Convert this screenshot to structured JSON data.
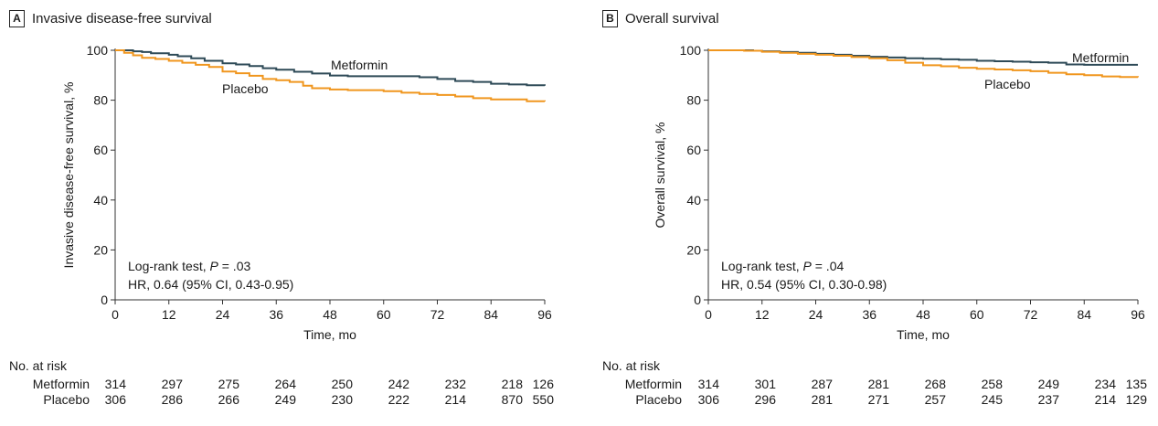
{
  "chart_data": [
    {
      "type": "line",
      "panel_letter": "A",
      "title": "Invasive disease-free survival",
      "xlabel": "Time, mo",
      "ylabel": "Invasive disease-free survival, %",
      "xlim": [
        0,
        96
      ],
      "ylim": [
        0,
        100
      ],
      "xticks": [
        0,
        12,
        24,
        36,
        48,
        60,
        72,
        84,
        96
      ],
      "yticks": [
        0,
        20,
        40,
        60,
        80,
        100
      ],
      "series": [
        {
          "name": "Metformin",
          "color": "#2e4a57",
          "x": [
            0,
            4,
            6,
            8,
            12,
            14,
            17,
            20,
            24,
            27,
            30,
            33,
            36,
            40,
            44,
            48,
            52,
            56,
            60,
            64,
            68,
            72,
            76,
            80,
            84,
            88,
            92,
            96
          ],
          "y": [
            100,
            99.6,
            99.3,
            98.8,
            98.2,
            97.6,
            96.8,
            95.8,
            94.8,
            94.3,
            93.7,
            92.8,
            92.2,
            91.4,
            90.7,
            89.9,
            89.6,
            89.6,
            89.6,
            89.6,
            89.2,
            88.5,
            87.7,
            87.3,
            86.6,
            86.3,
            86.0,
            85.8
          ]
        },
        {
          "name": "Placebo",
          "color": "#f0961e",
          "x": [
            0,
            2,
            4,
            6,
            9,
            12,
            15,
            18,
            21,
            24,
            27,
            30,
            33,
            36,
            39,
            42,
            44,
            48,
            52,
            56,
            60,
            64,
            68,
            72,
            76,
            80,
            84,
            88,
            92,
            96
          ],
          "y": [
            100,
            99.0,
            98.0,
            97.0,
            96.5,
            95.8,
            95.0,
            94.2,
            93.3,
            91.5,
            90.8,
            89.8,
            88.5,
            88.0,
            87.3,
            85.8,
            84.8,
            84.3,
            84.0,
            84.0,
            83.6,
            83.0,
            82.5,
            82.1,
            81.5,
            80.8,
            80.3,
            80.3,
            79.6,
            79.5
          ]
        }
      ],
      "annotations": {
        "metformin_label": "Metformin",
        "placebo_label": "Placebo",
        "test_prefix": "Log-rank test, ",
        "test_p_symbol": "P",
        "test_p_value": " = .03",
        "hr_text": "HR, 0.64 (95% CI, 0.43-0.95)"
      },
      "risk_table": {
        "title": "No. at risk",
        "rows": [
          {
            "group": "Metformin",
            "values": [
              "314",
              "297",
              "275",
              "264",
              "250",
              "242",
              "232",
              "218",
              "126"
            ]
          },
          {
            "group": "Placebo",
            "values": [
              "306",
              "286",
              "266",
              "249",
              "230",
              "222",
              "214",
              "870",
              "550"
            ]
          }
        ]
      }
    },
    {
      "type": "line",
      "panel_letter": "B",
      "title": "Overall survival",
      "xlabel": "Time, mo",
      "ylabel": "Overall survival, %",
      "xlim": [
        0,
        96
      ],
      "ylim": [
        0,
        100
      ],
      "xticks": [
        0,
        12,
        24,
        36,
        48,
        60,
        72,
        84,
        96
      ],
      "yticks": [
        0,
        20,
        40,
        60,
        80,
        100
      ],
      "series": [
        {
          "name": "Metformin",
          "color": "#2e4a57",
          "x": [
            0,
            6,
            10,
            12,
            16,
            20,
            24,
            28,
            32,
            36,
            40,
            44,
            48,
            52,
            56,
            60,
            64,
            68,
            72,
            76,
            80,
            84,
            88,
            92,
            96
          ],
          "y": [
            100,
            100,
            99.8,
            99.6,
            99.3,
            99.0,
            98.6,
            98.2,
            97.8,
            97.4,
            97.1,
            96.8,
            96.6,
            96.4,
            96.2,
            95.8,
            95.6,
            95.4,
            95.2,
            95.0,
            94.3,
            94.2,
            94.2,
            94.2,
            94.2
          ]
        },
        {
          "name": "Placebo",
          "color": "#f0961e",
          "x": [
            0,
            8,
            12,
            16,
            20,
            24,
            28,
            32,
            36,
            40,
            44,
            48,
            52,
            56,
            60,
            64,
            68,
            72,
            76,
            80,
            84,
            88,
            92,
            96
          ],
          "y": [
            100,
            99.8,
            99.4,
            99.0,
            98.6,
            98.2,
            97.8,
            97.3,
            96.8,
            96.0,
            95.0,
            94.0,
            93.6,
            93.0,
            92.6,
            92.3,
            92.0,
            91.6,
            91.0,
            90.4,
            90.0,
            89.5,
            89.3,
            89.2
          ]
        }
      ],
      "annotations": {
        "metformin_label": "Metformin",
        "placebo_label": "Placebo",
        "test_prefix": "Log-rank test, ",
        "test_p_symbol": "P",
        "test_p_value": " = .04",
        "hr_text": "HR, 0.54 (95% CI, 0.30-0.98)"
      },
      "risk_table": {
        "title": "No. at risk",
        "rows": [
          {
            "group": "Metformin",
            "values": [
              "314",
              "301",
              "287",
              "281",
              "268",
              "258",
              "249",
              "234",
              "135"
            ]
          },
          {
            "group": "Placebo",
            "values": [
              "306",
              "296",
              "281",
              "271",
              "257",
              "245",
              "237",
              "214",
              "129"
            ]
          }
        ]
      }
    }
  ]
}
